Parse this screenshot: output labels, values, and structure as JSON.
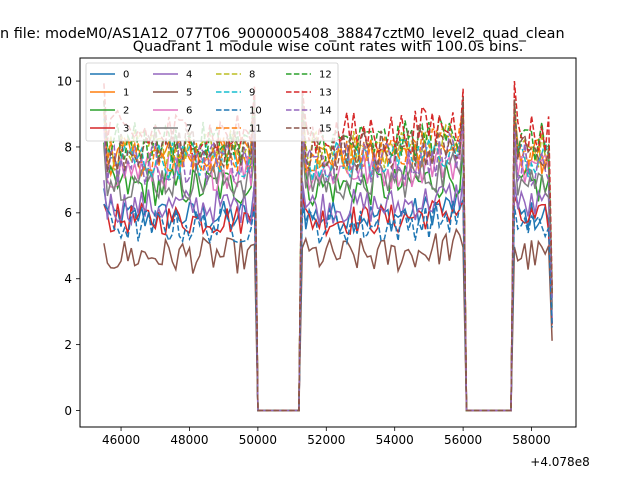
{
  "figure": {
    "suptitle": "n file: modeM0/AS1A12_077T06_9000005408_38847cztM0_level2_quad_clean"
  },
  "chart_data": {
    "type": "line",
    "title": "Quadrant 1 module wise count rates with 100.0s bins.",
    "xlabel": "",
    "ylabel": "",
    "x_offset_label": "+4.078e8",
    "x_offset": 407800000,
    "xlim": [
      44800,
      59300
    ],
    "ylim": [
      -0.5,
      10.7
    ],
    "x_ticks": [
      46000,
      48000,
      50000,
      52000,
      54000,
      56000,
      58000
    ],
    "y_ticks": [
      0,
      2,
      4,
      6,
      8,
      10
    ],
    "grid": false,
    "legend_placement": "top-left",
    "x_start": 45500,
    "bin": 100,
    "segments": [
      [
        45500,
        49900
      ],
      [
        51300,
        56000
      ],
      [
        57500,
        58600
      ]
    ],
    "gaps": [
      [
        50000,
        51200
      ],
      [
        56100,
        57400
      ]
    ],
    "series": [
      {
        "name": "0",
        "color": "#1f77b4",
        "dash": false,
        "level": 5.9,
        "jitter": 0.22,
        "edge": 6.8
      },
      {
        "name": "1",
        "color": "#ff7f0e",
        "dash": false,
        "level": 7.7,
        "jitter": 0.25,
        "edge": 9.1
      },
      {
        "name": "2",
        "color": "#2ca02c",
        "dash": false,
        "level": 6.8,
        "jitter": 0.28,
        "edge": 8.0
      },
      {
        "name": "3",
        "color": "#d62728",
        "dash": false,
        "level": 5.8,
        "jitter": 0.22,
        "edge": 6.4
      },
      {
        "name": "4",
        "color": "#9467bd",
        "dash": false,
        "level": 6.2,
        "jitter": 0.25,
        "edge": 7.0
      },
      {
        "name": "5",
        "color": "#8c564b",
        "dash": false,
        "level": 4.7,
        "jitter": 0.25,
        "edge": 5.0
      },
      {
        "name": "6",
        "color": "#e377c2",
        "dash": false,
        "level": 7.3,
        "jitter": 0.28,
        "edge": 8.6
      },
      {
        "name": "7",
        "color": "#7f7f7f",
        "dash": false,
        "level": 7.0,
        "jitter": 0.28,
        "edge": 8.2
      },
      {
        "name": "8",
        "color": "#bcbd22",
        "dash": true,
        "level": 7.9,
        "jitter": 0.28,
        "edge": 9.3
      },
      {
        "name": "9",
        "color": "#17becf",
        "dash": true,
        "level": 7.6,
        "jitter": 0.28,
        "edge": 8.9
      },
      {
        "name": "10",
        "color": "#1f77b4",
        "dash": true,
        "level": 5.6,
        "jitter": 0.25,
        "edge": 6.3
      },
      {
        "name": "11",
        "color": "#ff7f0e",
        "dash": true,
        "level": 7.8,
        "jitter": 0.25,
        "edge": 9.0
      },
      {
        "name": "12",
        "color": "#2ca02c",
        "dash": true,
        "level": 8.1,
        "jitter": 0.3,
        "edge": 9.5
      },
      {
        "name": "13",
        "color": "#d62728",
        "dash": true,
        "level": 8.4,
        "jitter": 0.32,
        "edge": 9.9
      },
      {
        "name": "14",
        "color": "#9467bd",
        "dash": true,
        "level": 7.5,
        "jitter": 0.3,
        "edge": 8.7
      },
      {
        "name": "15",
        "color": "#8c564b",
        "dash": true,
        "level": 7.9,
        "jitter": 0.3,
        "edge": 9.4
      }
    ]
  }
}
